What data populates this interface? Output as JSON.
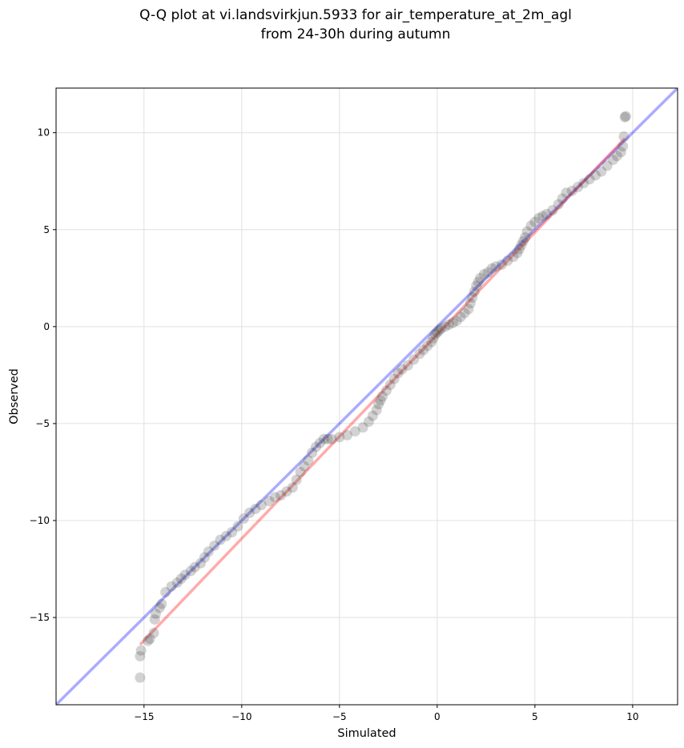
{
  "chart_data": {
    "type": "scatter",
    "title_lines": [
      "Q-Q plot at vi.landsvirkjun.5933 for air_temperature_at_2m_agl",
      "from 24-30h during autumn"
    ],
    "xlabel": "Simulated",
    "ylabel": "Observed",
    "xlim": [
      -19.5,
      12.3
    ],
    "ylim": [
      -19.5,
      12.3
    ],
    "x_ticks": [
      -15,
      -10,
      -5,
      0,
      5,
      10
    ],
    "y_ticks": [
      -15,
      -10,
      -5,
      0,
      5,
      10
    ],
    "x_tick_labels": [
      "−15",
      "−10",
      "−5",
      "0",
      "5",
      "10"
    ],
    "y_tick_labels": [
      "−15",
      "−10",
      "−5",
      "0",
      "5",
      "10"
    ],
    "grid": true,
    "colors": {
      "points": "#333333",
      "identity_line": "#0000ff",
      "fit_line": "#ff0000",
      "grid": "#e0e0e0"
    },
    "identity_line": {
      "x": [
        -19.5,
        12.3
      ],
      "y": [
        -19.5,
        12.3
      ]
    },
    "fit_line": {
      "x": [
        -15.2,
        9.6
      ],
      "y": [
        -16.4,
        9.7
      ]
    },
    "points": {
      "x": [
        -15.2,
        -15.2,
        -15.15,
        -14.8,
        -14.7,
        -14.5,
        -14.45,
        -14.4,
        -14.2,
        -14.1,
        -13.9,
        -13.6,
        -13.3,
        -13.1,
        -12.9,
        -12.6,
        -12.4,
        -12.1,
        -11.9,
        -11.7,
        -11.4,
        -11.1,
        -10.8,
        -10.5,
        -10.2,
        -9.9,
        -9.6,
        -9.3,
        -9.0,
        -8.6,
        -8.3,
        -8.0,
        -7.7,
        -7.4,
        -7.2,
        -7.0,
        -6.8,
        -6.6,
        -6.4,
        -6.2,
        -6.0,
        -5.8,
        -5.6,
        -5.4,
        -5.0,
        -4.6,
        -4.2,
        -3.8,
        -3.5,
        -3.3,
        -3.1,
        -3.0,
        -2.9,
        -2.8,
        -2.6,
        -2.4,
        -2.2,
        -2.0,
        -1.8,
        -1.5,
        -1.2,
        -0.9,
        -0.7,
        -0.5,
        -0.3,
        -0.2,
        -0.1,
        0.0,
        0.1,
        0.2,
        0.4,
        0.6,
        0.8,
        1.0,
        1.2,
        1.4,
        1.6,
        1.7,
        1.8,
        1.9,
        2.0,
        2.1,
        2.2,
        2.4,
        2.6,
        2.8,
        3.0,
        3.3,
        3.6,
        3.9,
        4.1,
        4.2,
        4.3,
        4.4,
        4.5,
        4.6,
        4.8,
        5.0,
        5.2,
        5.4,
        5.6,
        5.9,
        6.2,
        6.4,
        6.6,
        6.9,
        7.2,
        7.5,
        7.8,
        8.1,
        8.4,
        8.7,
        9.0,
        9.2,
        9.4,
        9.5,
        9.55,
        9.6,
        9.65
      ],
      "y": [
        -18.1,
        -17.0,
        -16.7,
        -16.2,
        -16.1,
        -15.8,
        -15.1,
        -14.8,
        -14.5,
        -14.3,
        -13.7,
        -13.4,
        -13.2,
        -13.0,
        -12.8,
        -12.6,
        -12.4,
        -12.2,
        -11.9,
        -11.6,
        -11.3,
        -11.0,
        -10.8,
        -10.6,
        -10.3,
        -9.9,
        -9.6,
        -9.4,
        -9.2,
        -9.0,
        -8.8,
        -8.7,
        -8.5,
        -8.3,
        -7.9,
        -7.5,
        -7.2,
        -6.9,
        -6.5,
        -6.2,
        -6.0,
        -5.8,
        -5.8,
        -5.8,
        -5.7,
        -5.6,
        -5.4,
        -5.2,
        -4.9,
        -4.6,
        -4.3,
        -4.0,
        -3.8,
        -3.6,
        -3.3,
        -3.0,
        -2.7,
        -2.4,
        -2.2,
        -2.0,
        -1.7,
        -1.4,
        -1.2,
        -1.0,
        -0.8,
        -0.6,
        -0.4,
        -0.3,
        -0.2,
        -0.1,
        0.0,
        0.1,
        0.2,
        0.3,
        0.5,
        0.7,
        0.9,
        1.2,
        1.5,
        1.8,
        2.1,
        2.3,
        2.5,
        2.7,
        2.8,
        3.0,
        3.1,
        3.2,
        3.4,
        3.6,
        3.8,
        4.0,
        4.2,
        4.4,
        4.6,
        4.9,
        5.2,
        5.4,
        5.6,
        5.7,
        5.8,
        6.0,
        6.3,
        6.6,
        6.9,
        7.0,
        7.2,
        7.4,
        7.6,
        7.8,
        8.0,
        8.3,
        8.6,
        8.8,
        9.0,
        9.3,
        9.8,
        10.8,
        10.85
      ]
    }
  }
}
